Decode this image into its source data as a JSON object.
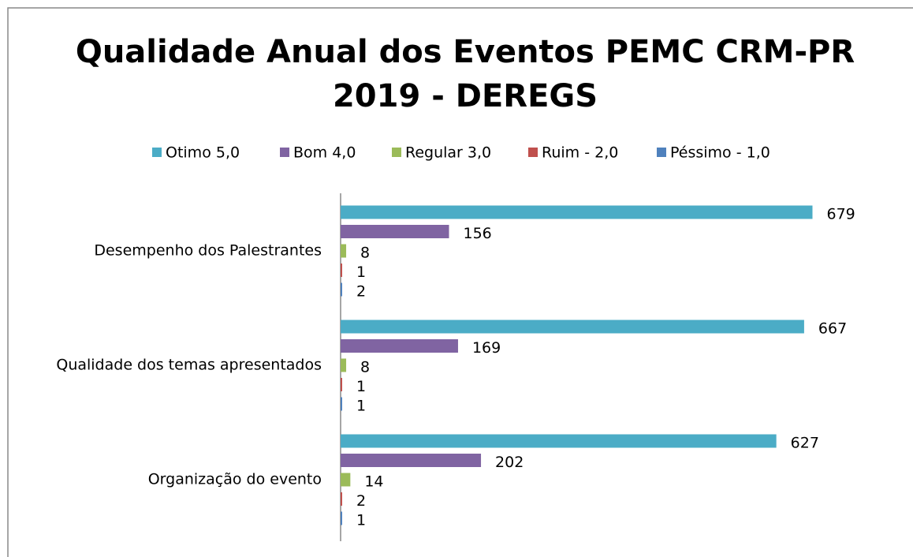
{
  "chart_data": {
    "type": "bar",
    "orientation": "horizontal",
    "title": [
      "Qualidade Anual dos Eventos PEMC CRM-PR",
      "2019 - DEREGS"
    ],
    "categories": [
      "Desempenho dos Palestrantes",
      "Qualidade dos temas apresentados",
      "Organização do evento"
    ],
    "series": [
      {
        "name": "Otimo 5,0",
        "color": "#4bacc6",
        "values": [
          679,
          667,
          627
        ]
      },
      {
        "name": "Bom 4,0",
        "color": "#8064a2",
        "values": [
          156,
          169,
          202
        ]
      },
      {
        "name": "Regular 3,0",
        "color": "#9bbb59",
        "values": [
          8,
          8,
          14
        ]
      },
      {
        "name": "Ruim - 2,0",
        "color": "#c0504d",
        "values": [
          1,
          1,
          2
        ]
      },
      {
        "name": "Péssimo - 1,0",
        "color": "#4f81bd",
        "values": [
          2,
          1,
          1
        ]
      }
    ],
    "xlim": [
      0,
      700
    ],
    "legend": "top",
    "grid": false
  }
}
